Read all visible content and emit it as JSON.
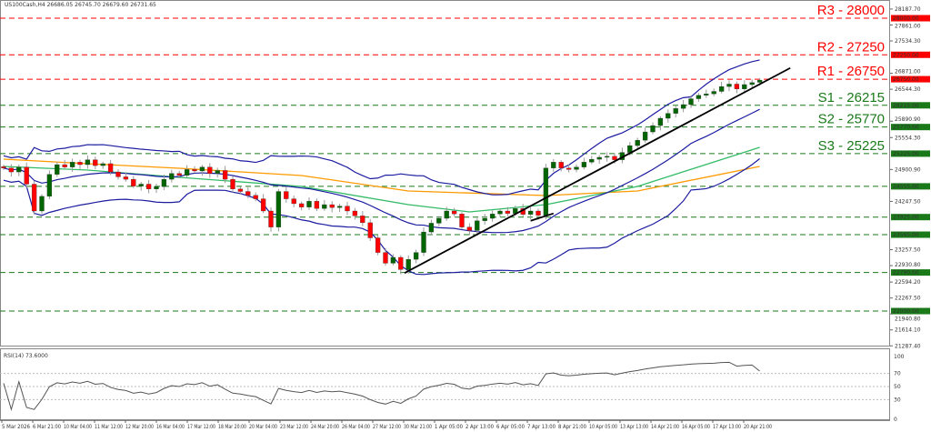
{
  "header": {
    "symbol": "US100Cash,H4",
    "ohlc": "26686.05 26745.70 26679.60 26731.65"
  },
  "rsi_header": "RSI(14) 73.6000",
  "colors": {
    "resistance": "#ff0000",
    "support": "#1a7a1a",
    "bull": "#006400",
    "bear": "#ff0000",
    "bands": "#1c1ca0",
    "ma_slow": "#ff9900",
    "ma_fast": "#33bb66",
    "trendline": "#000000"
  },
  "chart_data": [
    {
      "type": "candlestick",
      "title": "US100Cash,H4",
      "last_bar": {
        "open": 26686.05,
        "high": 26745.7,
        "low": 26679.6,
        "close": 26731.65
      },
      "closes": [
        24930,
        24850,
        24950,
        24600,
        24050,
        24350,
        24800,
        25000,
        24950,
        25050,
        25000,
        25100,
        24980,
        25020,
        24850,
        24750,
        24700,
        24560,
        24600,
        24500,
        24550,
        24700,
        24820,
        24780,
        24900,
        24870,
        24950,
        24820,
        24880,
        24700,
        24500,
        24450,
        24370,
        24300,
        24050,
        23720,
        24450,
        24300,
        24200,
        24130,
        24250,
        24100,
        24180,
        24120,
        24150,
        24050,
        23950,
        23810,
        23500,
        23200,
        22980,
        23100,
        22850,
        23060,
        23200,
        23620,
        23800,
        23900,
        24050,
        23990,
        23720,
        23650,
        23850,
        23900,
        23990,
        24050,
        24000,
        24100,
        23980,
        24050,
        23960,
        24930,
        25050,
        24930,
        24900,
        24950,
        25050,
        25110,
        25150,
        25170,
        25100,
        25250,
        25390,
        25500,
        25670,
        25800,
        25950,
        26050,
        26150,
        26230,
        26350,
        26420,
        26450,
        26500,
        26600,
        26650,
        26550,
        26640,
        26680,
        26731.65
      ],
      "ma_slow": [
        [
          0,
          25112
        ],
        [
          11,
          25019
        ],
        [
          23,
          24926
        ],
        [
          39,
          24777
        ],
        [
          53,
          24460
        ],
        [
          71,
          24367
        ],
        [
          83,
          24460
        ],
        [
          99,
          24963
        ]
      ],
      "ma_fast": [
        [
          0,
          24963
        ],
        [
          11,
          24888
        ],
        [
          23,
          24740
        ],
        [
          39,
          24553
        ],
        [
          53,
          24180
        ],
        [
          61,
          24031
        ],
        [
          71,
          24180
        ],
        [
          83,
          24553
        ],
        [
          99,
          25354
        ]
      ],
      "trendlines": [
        [
          [
            52.5,
            22780
          ],
          [
            103,
            26980
          ]
        ],
        [
          [
            69,
            23850
          ],
          [
            72,
            24000
          ]
        ]
      ],
      "levels": [
        {
          "label": "R3 - 28000",
          "value": 28000,
          "kind": "resistance"
        },
        {
          "label": "R2 - 27250",
          "value": 27250,
          "kind": "resistance"
        },
        {
          "label": "R1 - 26750",
          "value": 26750,
          "kind": "resistance"
        },
        {
          "label": "S1 - 26215",
          "value": 26215,
          "kind": "support"
        },
        {
          "label": "S2 - 25770",
          "value": 25770,
          "kind": "support"
        },
        {
          "label": "S3 - 25225",
          "value": 25225,
          "kind": "support"
        },
        {
          "label": "",
          "value": 24555,
          "kind": "support"
        },
        {
          "label": "",
          "value": 23925,
          "kind": "support"
        },
        {
          "label": "",
          "value": 23565,
          "kind": "support"
        },
        {
          "label": "",
          "value": 22790,
          "kind": "support"
        },
        {
          "label": "",
          "value": 22000,
          "kind": "support"
        }
      ],
      "level_tags": [
        "28000.00",
        "27250.00",
        "26750.00",
        "26215.00",
        "25770.00",
        "25225.00",
        "24555.00",
        "23925.00",
        "23565.00",
        "22790.00",
        "22000.00"
      ],
      "y_ticks": [
        [
          "28187.70",
          28187.7
        ],
        [
          "27861.00",
          27861
        ],
        [
          "27534.30",
          27534.3
        ],
        [
          "26871.00",
          26871
        ],
        [
          "26544.30",
          26544.3
        ],
        [
          "25890.90",
          25890.9
        ],
        [
          "25554.30",
          25554.3
        ],
        [
          "24900.90",
          24900.9
        ],
        [
          "24247.50",
          24247.5
        ],
        [
          "23257.50",
          23257.5
        ],
        [
          "22930.80",
          22930.8
        ],
        [
          "22594.20",
          22594.2
        ],
        [
          "22267.50",
          22267.5
        ],
        [
          "21940.80",
          21940.8
        ],
        [
          "21614.10",
          21614.1
        ],
        [
          "21287.40",
          21287.4
        ]
      ],
      "x_ticks": [
        "5 Mar 2026",
        "6 Mar 21:00",
        "10 Mar 04:00",
        "11 Mar 12:00",
        "12 Mar 20:00",
        "16 Mar 04:00",
        "17 Mar 12:00",
        "18 Mar 20:00",
        "20 Mar 04:00",
        "23 Mar 12:00",
        "24 Mar 20:00",
        "26 Mar 04:00",
        "27 Mar 12:00",
        "30 Mar 21:00",
        "1 Apr 05:00",
        "2 Apr 13:00",
        "6 Apr 05:00",
        "7 Apr 13:00",
        "8 Apr 21:00",
        "10 Apr 05:00",
        "13 Apr 13:00",
        "14 Apr 21:00",
        "16 Apr 05:00",
        "17 Apr 13:00",
        "20 Apr 21:00"
      ],
      "grid": false
    },
    {
      "type": "line",
      "title": "RSI(14) 73.6000",
      "ylim": [
        0,
        100
      ],
      "y_ticks": [
        "100",
        "70",
        "50",
        "30",
        "0"
      ],
      "levels": [
        70,
        50,
        30
      ]
    }
  ]
}
